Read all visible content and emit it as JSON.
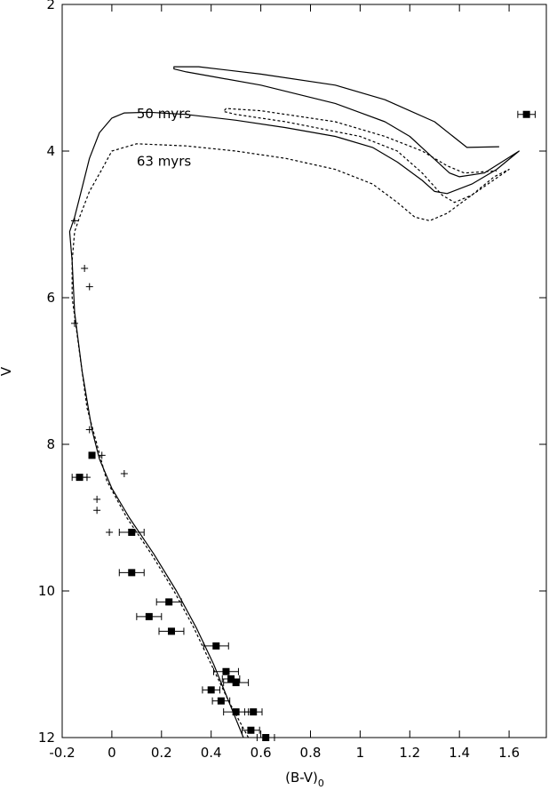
{
  "chart_data": {
    "type": "scatter",
    "xlabel_main": "(B-V)",
    "xlabel_sub": "0",
    "ylabel": "V",
    "xlim": [
      -0.2,
      1.75
    ],
    "ylim": [
      12,
      2
    ],
    "y_inverted": true,
    "x_ticks": [
      "-0.2",
      "0",
      "0.2",
      "0.4",
      "0.6",
      "0.8",
      "1",
      "1.2",
      "1.4",
      "1.6"
    ],
    "y_ticks": [
      "2",
      "4",
      "6",
      "8",
      "10",
      "12"
    ],
    "grid": false,
    "annotations": [
      {
        "text": "50 myrs",
        "x": 0.1,
        "y": 3.55
      },
      {
        "text": "63 myrs",
        "x": 0.1,
        "y": 4.2
      }
    ],
    "series": [
      {
        "style": "solid-line",
        "color": "#000000",
        "points": [
          [
            0.53,
            12.0
          ],
          [
            0.47,
            11.5
          ],
          [
            0.41,
            11.0
          ],
          [
            0.34,
            10.5
          ],
          [
            0.26,
            10.0
          ],
          [
            0.17,
            9.5
          ],
          [
            0.07,
            9.0
          ],
          [
            0.0,
            8.6
          ],
          [
            -0.05,
            8.2
          ],
          [
            -0.08,
            7.8
          ],
          [
            -0.12,
            7.0
          ],
          [
            -0.15,
            6.2
          ],
          [
            -0.16,
            5.5
          ],
          [
            -0.17,
            5.1
          ],
          [
            -0.15,
            4.9
          ],
          [
            -0.12,
            4.5
          ],
          [
            -0.09,
            4.1
          ],
          [
            -0.05,
            3.75
          ],
          [
            0.0,
            3.55
          ],
          [
            0.05,
            3.48
          ],
          [
            0.15,
            3.47
          ],
          [
            0.3,
            3.5
          ],
          [
            0.5,
            3.58
          ],
          [
            0.7,
            3.68
          ],
          [
            0.9,
            3.8
          ],
          [
            1.05,
            3.95
          ],
          [
            1.15,
            4.15
          ],
          [
            1.25,
            4.4
          ],
          [
            1.3,
            4.55
          ],
          [
            1.35,
            4.58
          ],
          [
            1.45,
            4.45
          ],
          [
            1.55,
            4.25
          ],
          [
            1.64,
            4.0
          ],
          [
            1.5,
            4.3
          ],
          [
            1.4,
            4.35
          ],
          [
            1.36,
            4.3
          ],
          [
            1.28,
            4.05
          ],
          [
            1.2,
            3.8
          ],
          [
            1.1,
            3.6
          ],
          [
            0.9,
            3.35
          ],
          [
            0.6,
            3.1
          ],
          [
            0.4,
            2.98
          ],
          [
            0.3,
            2.92
          ],
          [
            0.25,
            2.88
          ],
          [
            0.25,
            2.85
          ],
          [
            0.35,
            2.85
          ],
          [
            0.6,
            2.95
          ],
          [
            0.9,
            3.1
          ],
          [
            1.1,
            3.3
          ],
          [
            1.3,
            3.6
          ],
          [
            1.43,
            3.95
          ],
          [
            1.56,
            3.94
          ]
        ]
      },
      {
        "style": "dashed-line",
        "color": "#000000",
        "points": [
          [
            0.55,
            12.0
          ],
          [
            0.47,
            11.5
          ],
          [
            0.4,
            11.0
          ],
          [
            0.33,
            10.5
          ],
          [
            0.25,
            10.0
          ],
          [
            0.16,
            9.5
          ],
          [
            0.06,
            9.0
          ],
          [
            -0.02,
            8.5
          ],
          [
            -0.06,
            8.0
          ],
          [
            -0.1,
            7.5
          ],
          [
            -0.14,
            6.5
          ],
          [
            -0.16,
            6.0
          ],
          [
            -0.16,
            5.5
          ],
          [
            -0.15,
            5.1
          ],
          [
            -0.13,
            4.9
          ],
          [
            -0.09,
            4.55
          ],
          [
            -0.04,
            4.25
          ],
          [
            0.0,
            4.0
          ],
          [
            0.1,
            3.9
          ],
          [
            0.3,
            3.93
          ],
          [
            0.5,
            4.0
          ],
          [
            0.7,
            4.1
          ],
          [
            0.9,
            4.25
          ],
          [
            1.05,
            4.45
          ],
          [
            1.15,
            4.7
          ],
          [
            1.22,
            4.9
          ],
          [
            1.28,
            4.95
          ],
          [
            1.35,
            4.85
          ],
          [
            1.45,
            4.6
          ],
          [
            1.54,
            4.35
          ],
          [
            1.6,
            4.25
          ],
          [
            1.45,
            4.6
          ],
          [
            1.38,
            4.7
          ],
          [
            1.33,
            4.6
          ],
          [
            1.25,
            4.3
          ],
          [
            1.15,
            4.0
          ],
          [
            1.0,
            3.8
          ],
          [
            0.7,
            3.6
          ],
          [
            0.5,
            3.5
          ],
          [
            0.45,
            3.46
          ],
          [
            0.46,
            3.42
          ],
          [
            0.6,
            3.45
          ],
          [
            0.9,
            3.6
          ],
          [
            1.1,
            3.8
          ],
          [
            1.25,
            4.0
          ],
          [
            1.35,
            4.2
          ],
          [
            1.42,
            4.3
          ],
          [
            1.55,
            4.27
          ]
        ]
      },
      {
        "style": "filled-square",
        "color": "#000000",
        "points": [
          {
            "x": 1.67,
            "y": 3.5,
            "xerr": 0.035
          },
          {
            "x": -0.08,
            "y": 8.15,
            "xerr": 0.0
          },
          {
            "x": -0.13,
            "y": 8.45,
            "xerr": 0.03
          },
          {
            "x": 0.08,
            "y": 9.2,
            "xerr": 0.05
          },
          {
            "x": 0.08,
            "y": 9.75,
            "xerr": 0.05
          },
          {
            "x": 0.23,
            "y": 10.15,
            "xerr": 0.05
          },
          {
            "x": 0.15,
            "y": 10.35,
            "xerr": 0.05
          },
          {
            "x": 0.24,
            "y": 10.55,
            "xerr": 0.05
          },
          {
            "x": 0.42,
            "y": 10.75,
            "xerr": 0.05
          },
          {
            "x": 0.46,
            "y": 11.1,
            "xerr": 0.05
          },
          {
            "x": 0.48,
            "y": 11.2,
            "xerr": 0.035
          },
          {
            "x": 0.5,
            "y": 11.25,
            "xerr": 0.05
          },
          {
            "x": 0.4,
            "y": 11.35,
            "xerr": 0.035
          },
          {
            "x": 0.44,
            "y": 11.5,
            "xerr": 0.035
          },
          {
            "x": 0.57,
            "y": 11.65,
            "xerr": 0.035
          },
          {
            "x": 0.5,
            "y": 11.65,
            "xerr": 0.05
          },
          {
            "x": 0.56,
            "y": 11.9,
            "xerr": 0.035
          },
          {
            "x": 0.62,
            "y": 12.0,
            "xerr": 0.035
          }
        ]
      },
      {
        "style": "plus",
        "color": "#000000",
        "points": [
          [
            -0.15,
            4.95
          ],
          [
            -0.11,
            5.6
          ],
          [
            -0.09,
            5.85
          ],
          [
            -0.15,
            6.35
          ],
          [
            -0.09,
            7.8
          ],
          [
            -0.04,
            8.15
          ],
          [
            -0.1,
            8.45
          ],
          [
            0.05,
            8.4
          ],
          [
            -0.06,
            8.75
          ],
          [
            -0.06,
            8.9
          ],
          [
            -0.01,
            9.2
          ]
        ]
      }
    ]
  }
}
